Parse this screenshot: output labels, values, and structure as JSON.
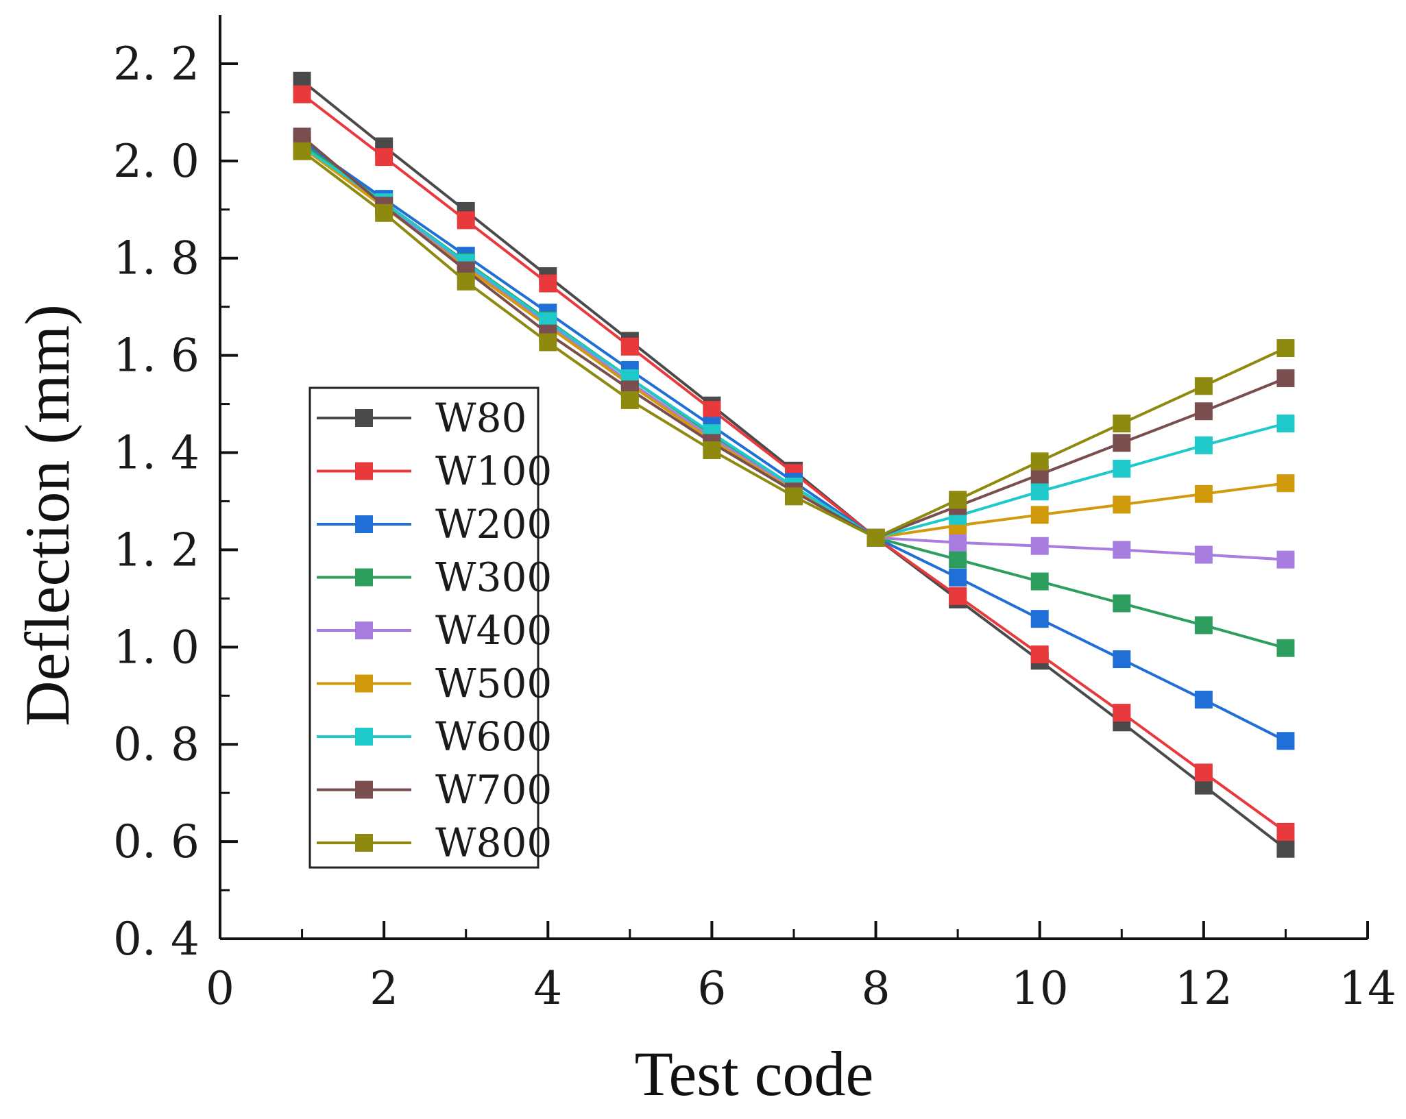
{
  "chart_data": {
    "type": "line",
    "title": "",
    "xlabel": "Test code",
    "ylabel": "Deflection (mm)",
    "xlim": [
      0,
      14
    ],
    "ylim": [
      0.4,
      2.3
    ],
    "xticks": [
      0,
      2,
      4,
      6,
      8,
      10,
      12,
      14
    ],
    "xtick_labels": [
      "0",
      "2",
      "4",
      "6",
      "8",
      "10",
      "12",
      "14"
    ],
    "yticks": [
      0.4,
      0.6,
      0.8,
      1.0,
      1.2,
      1.4,
      1.6,
      1.8,
      2.0,
      2.2
    ],
    "ytick_labels": [
      "0. 4",
      "0. 6",
      "0. 8",
      "1. 0",
      "1. 2",
      "1. 4",
      "1. 6",
      "1. 8",
      "2. 0",
      "2. 2"
    ],
    "legend_position": "center-left",
    "marker": "square",
    "grid": false,
    "x": [
      1,
      2,
      3,
      4,
      5,
      6,
      7,
      8,
      9,
      10,
      11,
      12,
      13
    ],
    "series": [
      {
        "name": "W80",
        "color": "#4a4a4a",
        "values": [
          2.165,
          2.03,
          1.897,
          1.763,
          1.63,
          1.497,
          1.363,
          1.225,
          1.098,
          0.972,
          0.845,
          0.715,
          0.585
        ]
      },
      {
        "name": "W100",
        "color": "#e8393c",
        "values": [
          2.137,
          2.008,
          1.878,
          1.748,
          1.618,
          1.488,
          1.358,
          1.225,
          1.105,
          0.985,
          0.865,
          0.742,
          0.62
        ]
      },
      {
        "name": "W200",
        "color": "#1f6fd6",
        "values": [
          2.04,
          1.922,
          1.805,
          1.688,
          1.57,
          1.455,
          1.34,
          1.225,
          1.143,
          1.058,
          0.975,
          0.892,
          0.807
        ]
      },
      {
        "name": "W300",
        "color": "#2e9e5e",
        "values": [
          2.035,
          1.915,
          1.792,
          1.672,
          1.553,
          1.437,
          1.33,
          1.225,
          1.18,
          1.135,
          1.09,
          1.045,
          0.998
        ]
      },
      {
        "name": "W400",
        "color": "#a77de0",
        "values": [
          2.03,
          1.91,
          1.785,
          1.665,
          1.545,
          1.43,
          1.325,
          1.225,
          1.215,
          1.208,
          1.2,
          1.19,
          1.18
        ]
      },
      {
        "name": "W500",
        "color": "#d19a0c",
        "values": [
          2.028,
          1.905,
          1.78,
          1.66,
          1.54,
          1.425,
          1.322,
          1.225,
          1.25,
          1.272,
          1.293,
          1.315,
          1.337
        ]
      },
      {
        "name": "W600",
        "color": "#1fc9c9",
        "values": [
          2.03,
          1.915,
          1.79,
          1.67,
          1.553,
          1.44,
          1.33,
          1.225,
          1.27,
          1.32,
          1.367,
          1.415,
          1.46
        ]
      },
      {
        "name": "W700",
        "color": "#7a4e4e",
        "values": [
          2.05,
          1.908,
          1.775,
          1.645,
          1.53,
          1.42,
          1.32,
          1.225,
          1.29,
          1.355,
          1.42,
          1.485,
          1.553
        ]
      },
      {
        "name": "W800",
        "color": "#8e8a10",
        "values": [
          2.02,
          1.893,
          1.752,
          1.627,
          1.508,
          1.405,
          1.31,
          1.225,
          1.303,
          1.382,
          1.46,
          1.537,
          1.615
        ]
      }
    ]
  }
}
